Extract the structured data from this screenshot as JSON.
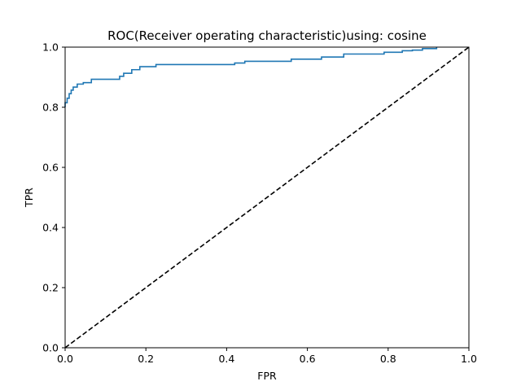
{
  "chart_data": {
    "type": "line",
    "title": "ROC(Receiver operating characteristic)using: cosine",
    "xlabel": "FPR",
    "ylabel": "TPR",
    "xlim": [
      0.0,
      1.0
    ],
    "ylim": [
      0.0,
      1.0
    ],
    "xticks": [
      "0.0",
      "0.2",
      "0.4",
      "0.6",
      "0.8",
      "1.0"
    ],
    "yticks": [
      "0.0",
      "0.2",
      "0.4",
      "0.6",
      "0.8",
      "1.0"
    ],
    "grid": false,
    "series": [
      {
        "style": "solid",
        "color": "#1f77b4",
        "x": [
          0.0,
          0.0,
          0.005,
          0.005,
          0.01,
          0.01,
          0.015,
          0.015,
          0.02,
          0.02,
          0.03,
          0.03,
          0.045,
          0.045,
          0.065,
          0.065,
          0.135,
          0.135,
          0.145,
          0.145,
          0.165,
          0.165,
          0.185,
          0.185,
          0.225,
          0.225,
          0.42,
          0.42,
          0.445,
          0.445,
          0.56,
          0.56,
          0.635,
          0.635,
          0.69,
          0.69,
          0.79,
          0.79,
          0.835,
          0.835,
          0.86,
          0.86,
          0.885,
          0.885,
          0.92,
          0.92
        ],
        "y": [
          0.8,
          0.815,
          0.815,
          0.83,
          0.83,
          0.845,
          0.845,
          0.857,
          0.857,
          0.867,
          0.867,
          0.877,
          0.877,
          0.882,
          0.882,
          0.893,
          0.893,
          0.903,
          0.903,
          0.913,
          0.913,
          0.925,
          0.925,
          0.935,
          0.935,
          0.942,
          0.942,
          0.947,
          0.947,
          0.953,
          0.953,
          0.96,
          0.96,
          0.967,
          0.967,
          0.977,
          0.977,
          0.983,
          0.983,
          0.988,
          0.988,
          0.99,
          0.99,
          0.995,
          0.995,
          1.0
        ]
      },
      {
        "style": "dashed",
        "color": "#000000",
        "x": [
          0.0,
          1.0
        ],
        "y": [
          0.0,
          1.0
        ]
      }
    ]
  }
}
